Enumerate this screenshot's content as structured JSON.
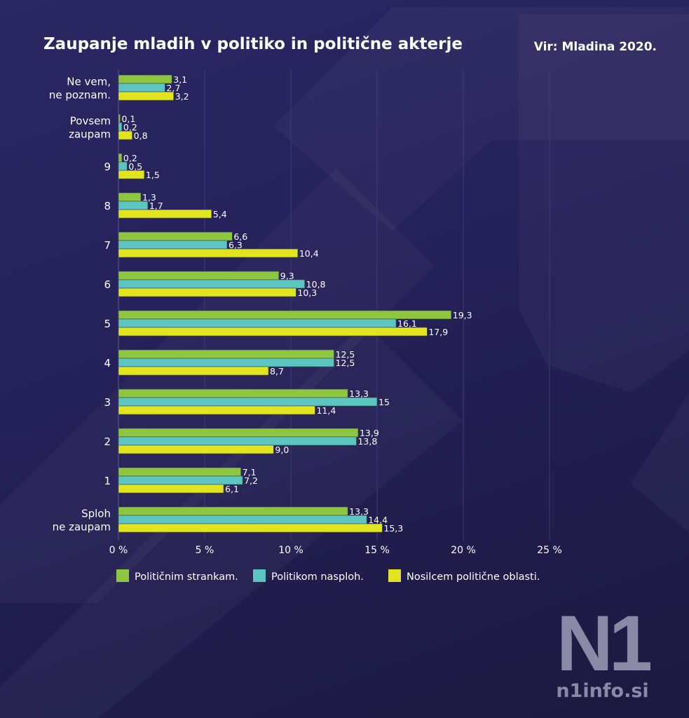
{
  "title": "Zaupanje mladih v politiko in politične akterje",
  "source": "Vir: Mladina 2020.",
  "logo": {
    "mark": "N1",
    "site": "n1info.si"
  },
  "colors": {
    "background": "#252159",
    "series": [
      "#8dc63f",
      "#5bc5bf",
      "#e2e41d"
    ],
    "text": "#ffffff",
    "grid": "#3d3a78"
  },
  "chart_data": {
    "type": "bar",
    "orientation": "horizontal",
    "title": "Zaupanje mladih v politiko in politične akterje",
    "categories": [
      [
        "Ne vem,",
        "ne poznam."
      ],
      [
        "Povsem",
        "zaupam"
      ],
      [
        "9"
      ],
      [
        "8"
      ],
      [
        "7"
      ],
      [
        "6"
      ],
      [
        "5"
      ],
      [
        "4"
      ],
      [
        "3"
      ],
      [
        "2"
      ],
      [
        "1"
      ],
      [
        "Sploh",
        "ne zaupam"
      ]
    ],
    "series": [
      {
        "name": "Političnim strankam.",
        "values": [
          3.1,
          0.1,
          0.2,
          1.3,
          6.6,
          9.3,
          19.3,
          12.5,
          13.3,
          13.9,
          7.1,
          13.3
        ],
        "labels": [
          "3,1",
          "0,1",
          "0,2",
          "1,3",
          "6,6",
          "9,3",
          "19,3",
          "12,5",
          "13,3",
          "13,9",
          "7,1",
          "13,3"
        ]
      },
      {
        "name": "Politikom nasploh.",
        "values": [
          2.7,
          0.2,
          0.5,
          1.7,
          6.3,
          10.8,
          16.1,
          12.5,
          15,
          13.8,
          7.2,
          14.4
        ],
        "labels": [
          "2,7",
          "0,2",
          "0,5",
          "1,7",
          "6,3",
          "10,8",
          "16,1",
          "12,5",
          "15",
          "13,8",
          "7,2",
          "14,4"
        ]
      },
      {
        "name": "Nosilcem politične oblasti.",
        "values": [
          3.2,
          0.8,
          1.5,
          5.4,
          10.4,
          10.3,
          17.9,
          8.7,
          11.4,
          9.0,
          6.1,
          15.3
        ],
        "labels": [
          "3,2",
          "0,8",
          "1,5",
          "5,4",
          "10,4",
          "10,3",
          "17,9",
          "8,7",
          "11,4",
          "9,0",
          "6,1",
          "15,3"
        ]
      }
    ],
    "xlim": [
      0,
      25
    ],
    "xticks": [
      0,
      5,
      10,
      15,
      20,
      25
    ],
    "xtick_labels": [
      "0 %",
      "5 %",
      "10 %",
      "15 %",
      "20 %",
      "25 %"
    ],
    "grid": "vertical",
    "legend": "bottom"
  }
}
